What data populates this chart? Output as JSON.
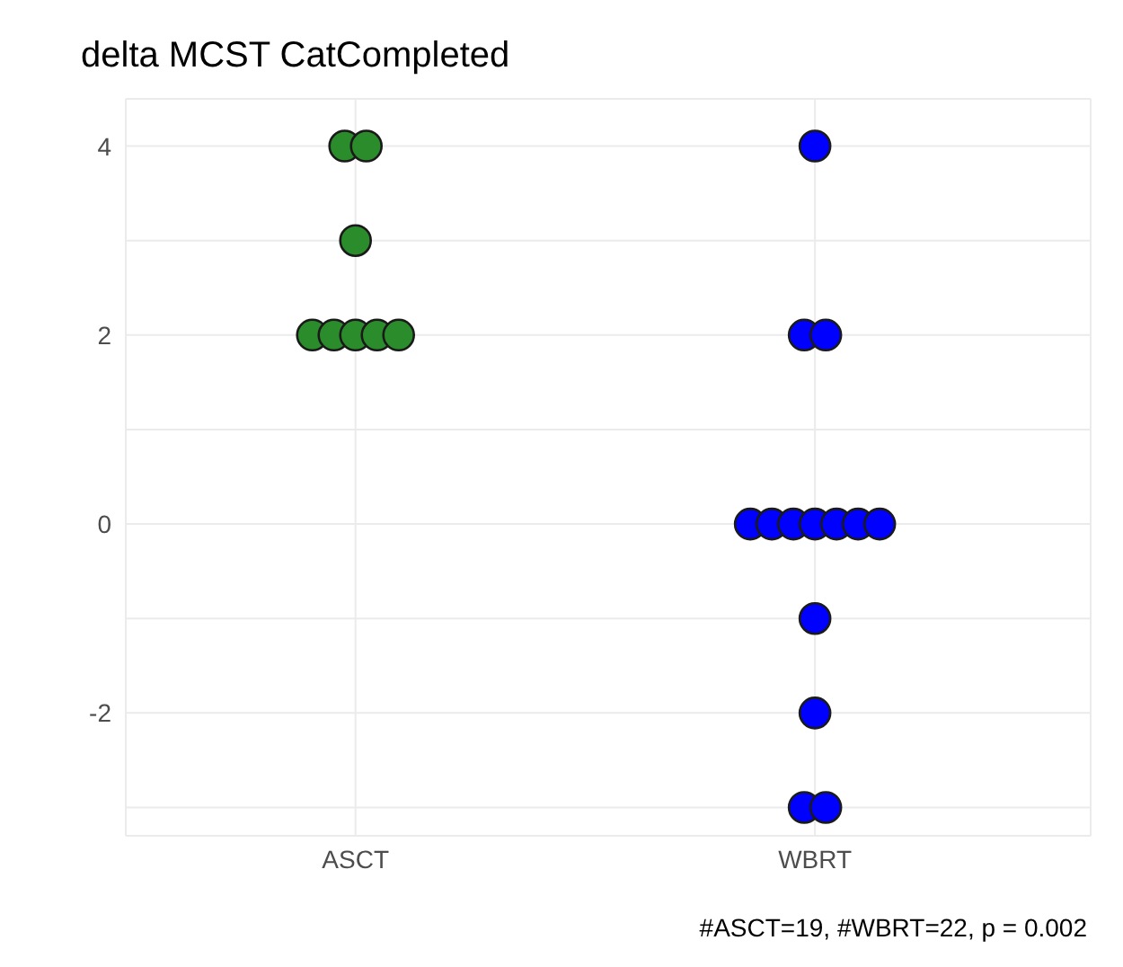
{
  "chart_data": {
    "type": "scatter",
    "title": "delta MCST CatCompleted",
    "categories": [
      "ASCT",
      "WBRT"
    ],
    "series": [
      {
        "color": "#2a8c2a",
        "x": [
          "ASCT",
          "ASCT",
          "ASCT",
          "ASCT",
          "ASCT",
          "ASCT",
          "ASCT",
          "ASCT"
        ],
        "values": [
          4,
          4,
          3,
          2,
          2,
          2,
          2,
          2
        ]
      },
      {
        "color": "#0000ff",
        "x": [
          "WBRT",
          "WBRT",
          "WBRT",
          "WBRT",
          "WBRT",
          "WBRT",
          "WBRT",
          "WBRT",
          "WBRT",
          "WBRT",
          "WBRT",
          "WBRT",
          "WBRT",
          "WBRT"
        ],
        "values": [
          4,
          2,
          2,
          0,
          0,
          0,
          0,
          0,
          0,
          0,
          -1,
          -2,
          -3,
          -3
        ]
      }
    ],
    "ylim": [
      -3.3,
      4.5
    ],
    "yticks": [
      {
        "value": -3,
        "label": null
      },
      -2,
      {
        "value": -1,
        "label": null
      },
      0,
      {
        "value": 1,
        "label": null
      },
      2,
      {
        "value": 3,
        "label": null
      },
      4
    ],
    "grid": true,
    "marker": "circle",
    "annotations": [
      "#ASCT=19, #WBRT=22, p = 0.002"
    ]
  }
}
